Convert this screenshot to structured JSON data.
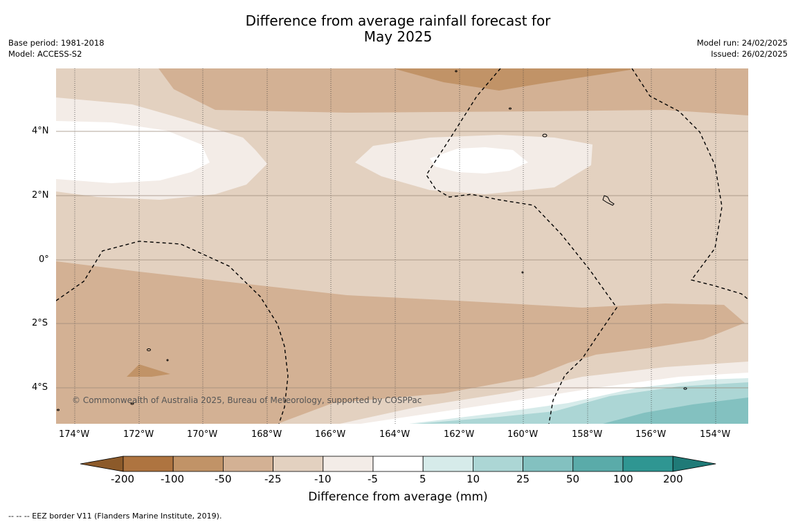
{
  "title": "Difference from average rainfall forecast for",
  "title_line2": "May 2025",
  "base_period": "Base period: 1981-2018",
  "model": "Model: ACCESS-S2",
  "model_run": "Model run: 24/02/2025",
  "issued": "Issued: 26/02/2025",
  "copyright": "© Commonwealth of Australia 2025, Bureau of Meteorology, supported by COSPPac",
  "colorbar": {
    "title": "Difference from average (mm)",
    "ticks": [
      "-200",
      "-100",
      "-50",
      "-25",
      "-10",
      "-5",
      "5",
      "10",
      "25",
      "50",
      "100",
      "200"
    ],
    "colors": [
      "#8c5a2a",
      "#ae7440",
      "#c19367",
      "#d3b194",
      "#e3d1c0",
      "#f3ece7",
      "#ffffff",
      "#d6ebea",
      "#acd6d5",
      "#83c1c0",
      "#5aaba9",
      "#2f9692",
      "#1f7a77"
    ]
  },
  "lat_labels": [
    "4°N",
    "2°N",
    "0°",
    "2°S",
    "4°S"
  ],
  "lon_labels": [
    "174°W",
    "172°W",
    "170°W",
    "168°W",
    "166°W",
    "164°W",
    "162°W",
    "160°W",
    "158°W",
    "156°W",
    "154°W"
  ],
  "footer": "--  --  -- EEZ border V11 (Flanders Marine Institute, 2019)."
}
